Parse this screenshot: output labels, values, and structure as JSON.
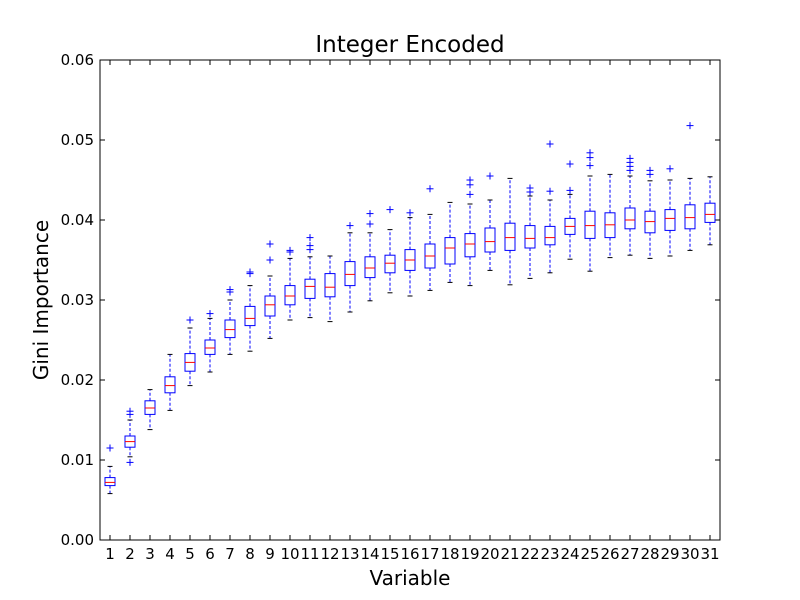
{
  "chart_data": {
    "type": "box",
    "title": "Integer Encoded",
    "xlabel": "Variable",
    "ylabel": "Gini Importance",
    "ylim": [
      0.0,
      0.06
    ],
    "y_ticks": [
      "0.00",
      "0.01",
      "0.02",
      "0.03",
      "0.04",
      "0.05",
      "0.06"
    ],
    "categories": [
      "1",
      "2",
      "3",
      "4",
      "5",
      "6",
      "7",
      "8",
      "9",
      "10",
      "11",
      "12",
      "13",
      "14",
      "15",
      "16",
      "17",
      "18",
      "19",
      "20",
      "21",
      "22",
      "23",
      "24",
      "25",
      "26",
      "27",
      "28",
      "29",
      "30",
      "31"
    ],
    "grid": false,
    "legend": "none",
    "colors": {
      "box": "#0000ff",
      "median": "#ff0000",
      "outlier": "#0000ff"
    },
    "boxes": [
      {
        "whislo": 0.0058,
        "q1": 0.0068,
        "med": 0.0072,
        "q3": 0.0078,
        "whishi": 0.0092,
        "fliers": [
          0.0115
        ]
      },
      {
        "whislo": 0.0104,
        "q1": 0.0116,
        "med": 0.0123,
        "q3": 0.013,
        "whishi": 0.015,
        "fliers": [
          0.0097,
          0.0157,
          0.0161
        ]
      },
      {
        "whislo": 0.0138,
        "q1": 0.0157,
        "med": 0.0165,
        "q3": 0.0174,
        "whishi": 0.0188,
        "fliers": []
      },
      {
        "whislo": 0.0162,
        "q1": 0.0184,
        "med": 0.0193,
        "q3": 0.0204,
        "whishi": 0.0232,
        "fliers": []
      },
      {
        "whislo": 0.0193,
        "q1": 0.0211,
        "med": 0.0222,
        "q3": 0.0233,
        "whishi": 0.0265,
        "fliers": [
          0.0275
        ]
      },
      {
        "whislo": 0.021,
        "q1": 0.0232,
        "med": 0.024,
        "q3": 0.025,
        "whishi": 0.0277,
        "fliers": [
          0.0283
        ]
      },
      {
        "whislo": 0.0232,
        "q1": 0.0253,
        "med": 0.0263,
        "q3": 0.0275,
        "whishi": 0.03,
        "fliers": [
          0.031,
          0.0313
        ]
      },
      {
        "whislo": 0.0236,
        "q1": 0.0268,
        "med": 0.0277,
        "q3": 0.0292,
        "whishi": 0.0318,
        "fliers": [
          0.0333,
          0.0335
        ]
      },
      {
        "whislo": 0.0252,
        "q1": 0.028,
        "med": 0.0294,
        "q3": 0.0305,
        "whishi": 0.033,
        "fliers": [
          0.035,
          0.037
        ]
      },
      {
        "whislo": 0.0275,
        "q1": 0.0294,
        "med": 0.0305,
        "q3": 0.0318,
        "whishi": 0.0352,
        "fliers": [
          0.036,
          0.0362
        ]
      },
      {
        "whislo": 0.0278,
        "q1": 0.0302,
        "med": 0.0317,
        "q3": 0.0326,
        "whishi": 0.0354,
        "fliers": [
          0.0363,
          0.0368,
          0.0378
        ]
      },
      {
        "whislo": 0.0273,
        "q1": 0.0304,
        "med": 0.0316,
        "q3": 0.0333,
        "whishi": 0.0355,
        "fliers": []
      },
      {
        "whislo": 0.0285,
        "q1": 0.0318,
        "med": 0.0332,
        "q3": 0.0348,
        "whishi": 0.0384,
        "fliers": [
          0.0393
        ]
      },
      {
        "whislo": 0.0299,
        "q1": 0.0328,
        "med": 0.034,
        "q3": 0.0354,
        "whishi": 0.0384,
        "fliers": [
          0.0395,
          0.0408
        ]
      },
      {
        "whislo": 0.0309,
        "q1": 0.0334,
        "med": 0.0346,
        "q3": 0.0356,
        "whishi": 0.0388,
        "fliers": [
          0.0413
        ]
      },
      {
        "whislo": 0.0305,
        "q1": 0.0337,
        "med": 0.035,
        "q3": 0.0363,
        "whishi": 0.0403,
        "fliers": [
          0.0409
        ]
      },
      {
        "whislo": 0.0312,
        "q1": 0.034,
        "med": 0.0355,
        "q3": 0.037,
        "whishi": 0.0407,
        "fliers": [
          0.0439
        ]
      },
      {
        "whislo": 0.0322,
        "q1": 0.0345,
        "med": 0.0365,
        "q3": 0.0378,
        "whishi": 0.0422,
        "fliers": []
      },
      {
        "whislo": 0.0318,
        "q1": 0.0354,
        "med": 0.037,
        "q3": 0.0383,
        "whishi": 0.042,
        "fliers": [
          0.0432,
          0.0444,
          0.045
        ]
      },
      {
        "whislo": 0.0337,
        "q1": 0.036,
        "med": 0.0373,
        "q3": 0.039,
        "whishi": 0.0425,
        "fliers": [
          0.0455
        ]
      },
      {
        "whislo": 0.0319,
        "q1": 0.0362,
        "med": 0.0378,
        "q3": 0.0396,
        "whishi": 0.0452,
        "fliers": []
      },
      {
        "whislo": 0.0327,
        "q1": 0.0365,
        "med": 0.0377,
        "q3": 0.0393,
        "whishi": 0.043,
        "fliers": [
          0.0435,
          0.044
        ]
      },
      {
        "whislo": 0.0334,
        "q1": 0.0369,
        "med": 0.0378,
        "q3": 0.0392,
        "whishi": 0.0425,
        "fliers": [
          0.0436,
          0.0495
        ]
      },
      {
        "whislo": 0.0351,
        "q1": 0.0382,
        "med": 0.0392,
        "q3": 0.0402,
        "whishi": 0.0432,
        "fliers": [
          0.0437,
          0.047
        ]
      },
      {
        "whislo": 0.0336,
        "q1": 0.0377,
        "med": 0.0393,
        "q3": 0.0411,
        "whishi": 0.0455,
        "fliers": [
          0.0468,
          0.0478,
          0.0484
        ]
      },
      {
        "whislo": 0.0353,
        "q1": 0.0378,
        "med": 0.0394,
        "q3": 0.0409,
        "whishi": 0.0457,
        "fliers": []
      },
      {
        "whislo": 0.0356,
        "q1": 0.0389,
        "med": 0.04,
        "q3": 0.0415,
        "whishi": 0.0455,
        "fliers": [
          0.0462,
          0.0467,
          0.0472,
          0.0477
        ]
      },
      {
        "whislo": 0.0352,
        "q1": 0.0384,
        "med": 0.0398,
        "q3": 0.0411,
        "whishi": 0.0449,
        "fliers": [
          0.0457,
          0.0462
        ]
      },
      {
        "whislo": 0.0355,
        "q1": 0.0387,
        "med": 0.0402,
        "q3": 0.0413,
        "whishi": 0.045,
        "fliers": [
          0.0464
        ]
      },
      {
        "whislo": 0.0362,
        "q1": 0.0389,
        "med": 0.0403,
        "q3": 0.0419,
        "whishi": 0.0452,
        "fliers": [
          0.0518
        ]
      },
      {
        "whislo": 0.0369,
        "q1": 0.0397,
        "med": 0.0407,
        "q3": 0.0421,
        "whishi": 0.0454,
        "fliers": []
      }
    ]
  }
}
